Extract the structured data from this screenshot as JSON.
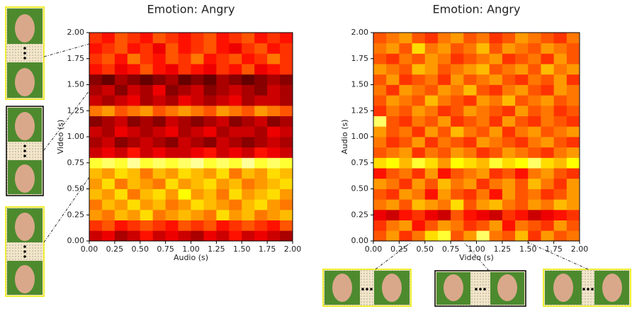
{
  "chart_data": [
    {
      "type": "heatmap",
      "title": "Emotion: Angry",
      "x_label": "Audio (s)",
      "y_label": "Video (s)",
      "colormap": "hot",
      "xlim": [
        0,
        2
      ],
      "ylim": [
        0,
        2
      ],
      "xticks": [
        {
          "value": 0,
          "label": "0.00"
        },
        {
          "value": 0.25,
          "label": "0.25"
        },
        {
          "value": 0.5,
          "label": "0.50"
        },
        {
          "value": 0.75,
          "label": "0.75"
        },
        {
          "value": 1,
          "label": "1.00"
        },
        {
          "value": 1.25,
          "label": "1.25"
        },
        {
          "value": 1.5,
          "label": "1.50"
        },
        {
          "value": 1.75,
          "label": "1.75"
        },
        {
          "value": 2,
          "label": "2.00"
        }
      ],
      "yticks": [
        {
          "value": 0,
          "label": "0.00"
        },
        {
          "value": 0.25,
          "label": "0.25"
        },
        {
          "value": 0.5,
          "label": "0.50"
        },
        {
          "value": 0.75,
          "label": "0.75"
        },
        {
          "value": 1,
          "label": "1.00"
        },
        {
          "value": 1.25,
          "label": "1.25"
        },
        {
          "value": 1.5,
          "label": "1.50"
        },
        {
          "value": 1.75,
          "label": "1.75"
        },
        {
          "value": 2,
          "label": "2.00"
        }
      ],
      "values": [
        [
          0.3,
          0.35,
          0.25,
          0.3,
          0.4,
          0.3,
          0.35,
          0.3,
          0.25,
          0.35,
          0.3,
          0.4,
          0.3,
          0.35,
          0.3,
          0.25
        ],
        [
          0.45,
          0.5,
          0.4,
          0.45,
          0.5,
          0.45,
          0.4,
          0.5,
          0.45,
          0.5,
          0.4,
          0.45,
          0.5,
          0.45,
          0.4,
          0.5
        ],
        [
          0.6,
          0.55,
          0.65,
          0.6,
          0.7,
          0.55,
          0.6,
          0.65,
          0.6,
          0.55,
          0.7,
          0.6,
          0.65,
          0.55,
          0.6,
          0.65
        ],
        [
          0.55,
          0.65,
          0.6,
          0.7,
          0.6,
          0.65,
          0.55,
          0.6,
          0.7,
          0.65,
          0.6,
          0.55,
          0.65,
          0.7,
          0.6,
          0.55
        ],
        [
          0.65,
          0.6,
          0.7,
          0.55,
          0.65,
          0.7,
          0.6,
          0.75,
          0.6,
          0.65,
          0.55,
          0.7,
          0.6,
          0.65,
          0.7,
          0.6
        ],
        [
          0.6,
          0.7,
          0.55,
          0.65,
          0.6,
          0.55,
          0.7,
          0.6,
          0.65,
          0.7,
          0.6,
          0.65,
          0.55,
          0.6,
          0.65,
          0.7
        ],
        [
          0.65,
          0.6,
          0.7,
          0.65,
          0.55,
          0.65,
          0.6,
          0.7,
          0.65,
          0.6,
          0.7,
          0.55,
          0.65,
          0.6,
          0.7,
          0.65
        ],
        [
          0.8,
          0.85,
          0.8,
          0.9,
          0.8,
          0.85,
          0.8,
          0.85,
          0.9,
          0.8,
          0.85,
          0.8,
          0.9,
          0.8,
          0.85,
          0.8
        ],
        [
          0.3,
          0.35,
          0.3,
          0.4,
          0.3,
          0.35,
          0.3,
          0.3,
          0.35,
          0.4,
          0.3,
          0.35,
          0.3,
          0.4,
          0.35,
          0.3
        ],
        [
          0.25,
          0.3,
          0.2,
          0.25,
          0.3,
          0.25,
          0.2,
          0.3,
          0.25,
          0.2,
          0.3,
          0.25,
          0.2,
          0.25,
          0.3,
          0.25
        ],
        [
          0.3,
          0.25,
          0.35,
          0.3,
          0.25,
          0.3,
          0.35,
          0.25,
          0.3,
          0.35,
          0.25,
          0.3,
          0.3,
          0.25,
          0.35,
          0.3
        ],
        [
          0.2,
          0.25,
          0.3,
          0.2,
          0.25,
          0.2,
          0.3,
          0.25,
          0.2,
          0.25,
          0.3,
          0.2,
          0.25,
          0.3,
          0.2,
          0.25
        ],
        [
          0.55,
          0.6,
          0.5,
          0.55,
          0.6,
          0.5,
          0.55,
          0.6,
          0.55,
          0.5,
          0.6,
          0.55,
          0.5,
          0.6,
          0.55,
          0.5
        ],
        [
          0.3,
          0.25,
          0.3,
          0.35,
          0.25,
          0.3,
          0.25,
          0.35,
          0.3,
          0.25,
          0.3,
          0.35,
          0.25,
          0.3,
          0.3,
          0.25
        ],
        [
          0.25,
          0.3,
          0.2,
          0.3,
          0.25,
          0.35,
          0.2,
          0.25,
          0.3,
          0.2,
          0.25,
          0.3,
          0.25,
          0.2,
          0.3,
          0.25
        ],
        [
          0.2,
          0.15,
          0.25,
          0.2,
          0.15,
          0.2,
          0.25,
          0.15,
          0.2,
          0.15,
          0.25,
          0.2,
          0.15,
          0.2,
          0.25,
          0.2
        ],
        [
          0.4,
          0.45,
          0.35,
          0.4,
          0.5,
          0.4,
          0.35,
          0.45,
          0.4,
          0.35,
          0.45,
          0.4,
          0.5,
          0.35,
          0.4,
          0.45
        ],
        [
          0.45,
          0.5,
          0.4,
          0.55,
          0.45,
          0.4,
          0.5,
          0.45,
          0.55,
          0.4,
          0.45,
          0.5,
          0.4,
          0.45,
          0.55,
          0.45
        ],
        [
          0.4,
          0.45,
          0.5,
          0.4,
          0.45,
          0.35,
          0.5,
          0.4,
          0.45,
          0.5,
          0.4,
          0.35,
          0.45,
          0.5,
          0.4,
          0.45
        ],
        [
          0.45,
          0.4,
          0.5,
          0.45,
          0.4,
          0.5,
          0.45,
          0.4,
          0.45,
          0.5,
          0.4,
          0.45,
          0.5,
          0.4,
          0.45,
          0.4
        ]
      ]
    },
    {
      "type": "heatmap",
      "title": "Emotion: Angry",
      "x_label": "Video (s)",
      "y_label": "Audio (s)",
      "colormap": "hot",
      "xlim": [
        0,
        2
      ],
      "ylim": [
        0,
        2
      ],
      "xticks": [
        {
          "value": 0,
          "label": "0.00"
        },
        {
          "value": 0.25,
          "label": "0.25"
        },
        {
          "value": 0.5,
          "label": "0.50"
        },
        {
          "value": 0.75,
          "label": "0.75"
        },
        {
          "value": 1,
          "label": "1.00"
        },
        {
          "value": 1.25,
          "label": "1.25"
        },
        {
          "value": 1.5,
          "label": "1.50"
        },
        {
          "value": 1.75,
          "label": "1.75"
        },
        {
          "value": 2,
          "label": "2.00"
        }
      ],
      "yticks": [
        {
          "value": 0,
          "label": "0.00"
        },
        {
          "value": 0.25,
          "label": "0.25"
        },
        {
          "value": 0.5,
          "label": "0.50"
        },
        {
          "value": 0.75,
          "label": "0.75"
        },
        {
          "value": 1,
          "label": "1.00"
        },
        {
          "value": 1.25,
          "label": "1.25"
        },
        {
          "value": 1.5,
          "label": "1.50"
        },
        {
          "value": 1.75,
          "label": "1.75"
        },
        {
          "value": 2,
          "label": "2.00"
        }
      ],
      "values": [
        [
          0.5,
          0.6,
          0.45,
          0.55,
          0.7,
          0.8,
          0.5,
          0.6,
          0.85,
          0.55,
          0.5,
          0.65,
          0.45,
          0.6,
          0.5,
          0.55
        ],
        [
          0.45,
          0.55,
          0.6,
          0.4,
          0.5,
          0.6,
          0.55,
          0.45,
          0.5,
          0.6,
          0.4,
          0.55,
          0.5,
          0.45,
          0.6,
          0.5
        ],
        [
          0.35,
          0.3,
          0.4,
          0.45,
          0.35,
          0.3,
          0.5,
          0.4,
          0.35,
          0.3,
          0.45,
          0.4,
          0.3,
          0.35,
          0.4,
          0.45
        ],
        [
          0.55,
          0.6,
          0.5,
          0.65,
          0.6,
          0.55,
          0.7,
          0.5,
          0.6,
          0.65,
          0.55,
          0.5,
          0.6,
          0.55,
          0.65,
          0.6
        ],
        [
          0.5,
          0.45,
          0.6,
          0.55,
          0.4,
          0.6,
          0.5,
          0.45,
          0.55,
          0.4,
          0.6,
          0.5,
          0.55,
          0.45,
          0.5,
          0.6
        ],
        [
          0.6,
          0.55,
          0.45,
          0.6,
          0.5,
          0.65,
          0.55,
          0.6,
          0.45,
          0.55,
          0.6,
          0.5,
          0.65,
          0.55,
          0.45,
          0.6
        ],
        [
          0.4,
          0.5,
          0.55,
          0.45,
          0.6,
          0.4,
          0.5,
          0.55,
          0.6,
          0.45,
          0.5,
          0.4,
          0.55,
          0.6,
          0.5,
          0.45
        ],
        [
          0.7,
          0.75,
          0.65,
          0.8,
          0.7,
          0.6,
          0.75,
          0.7,
          0.65,
          0.8,
          0.7,
          0.75,
          0.85,
          0.7,
          0.65,
          0.75
        ],
        [
          0.5,
          0.55,
          0.6,
          0.45,
          0.55,
          0.5,
          0.6,
          0.55,
          0.45,
          0.5,
          0.6,
          0.55,
          0.5,
          0.45,
          0.55,
          0.6
        ],
        [
          0.55,
          0.45,
          0.5,
          0.6,
          0.45,
          0.55,
          0.5,
          0.45,
          0.6,
          0.55,
          0.5,
          0.45,
          0.55,
          0.6,
          0.5,
          0.45
        ],
        [
          0.6,
          0.5,
          0.55,
          0.45,
          0.6,
          0.5,
          0.65,
          0.55,
          0.5,
          0.6,
          0.45,
          0.55,
          0.6,
          0.5,
          0.55,
          0.6
        ],
        [
          0.85,
          0.5,
          0.45,
          0.55,
          0.5,
          0.6,
          0.45,
          0.5,
          0.55,
          0.45,
          0.6,
          0.5,
          0.45,
          0.55,
          0.5,
          0.45
        ],
        [
          0.45,
          0.55,
          0.5,
          0.6,
          0.55,
          0.45,
          0.5,
          0.6,
          0.55,
          0.5,
          0.45,
          0.6,
          0.5,
          0.55,
          0.45,
          0.5
        ],
        [
          0.5,
          0.6,
          0.55,
          0.5,
          0.65,
          0.55,
          0.5,
          0.45,
          0.6,
          0.55,
          0.65,
          0.5,
          0.55,
          0.6,
          0.5,
          0.55
        ],
        [
          0.55,
          0.45,
          0.6,
          0.55,
          0.5,
          0.6,
          0.55,
          0.65,
          0.5,
          0.45,
          0.55,
          0.6,
          0.5,
          0.45,
          0.6,
          0.55
        ],
        [
          0.5,
          0.6,
          0.45,
          0.5,
          0.55,
          0.45,
          0.6,
          0.5,
          0.55,
          0.6,
          0.5,
          0.45,
          0.55,
          0.5,
          0.6,
          0.45
        ],
        [
          0.6,
          0.55,
          0.5,
          0.65,
          0.6,
          0.5,
          0.55,
          0.6,
          0.65,
          0.5,
          0.55,
          0.6,
          0.5,
          0.65,
          0.55,
          0.6
        ],
        [
          0.5,
          0.45,
          0.55,
          0.5,
          0.6,
          0.55,
          0.45,
          0.5,
          0.55,
          0.6,
          0.45,
          0.5,
          0.55,
          0.45,
          0.6,
          0.5
        ],
        [
          0.55,
          0.6,
          0.5,
          0.7,
          0.55,
          0.6,
          0.5,
          0.55,
          0.65,
          0.5,
          0.6,
          0.55,
          0.5,
          0.6,
          0.55,
          0.5
        ],
        [
          0.5,
          0.55,
          0.6,
          0.5,
          0.45,
          0.55,
          0.6,
          0.5,
          0.55,
          0.45,
          0.5,
          0.6,
          0.55,
          0.5,
          0.45,
          0.55
        ]
      ]
    }
  ]
}
